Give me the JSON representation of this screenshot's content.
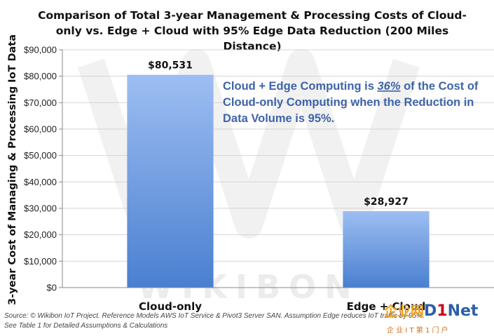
{
  "chart_data": {
    "type": "bar",
    "title_lines": [
      "Comparison of Total 3-year Management & Processing Costs of Cloud-",
      "only vs. Edge + Cloud with 95% Edge Data Reduction (200 Miles",
      "Distance)"
    ],
    "xlabel": "",
    "ylabel": "3-year Cost of Managing & Processing IoT Data",
    "ylim": [
      0,
      90000
    ],
    "yticks": [
      0,
      10000,
      20000,
      30000,
      40000,
      50000,
      60000,
      70000,
      80000,
      90000
    ],
    "ytick_labels": [
      "$0",
      "$10,000",
      "$20,000",
      "$30,000",
      "$40,000",
      "$50,000",
      "$60,000",
      "$70,000",
      "$80,000",
      "$90,000"
    ],
    "grid": true,
    "categories": [
      "Cloud-only",
      "Edge + Cloud"
    ],
    "values": [
      80531,
      28927
    ],
    "data_labels": [
      "$80,531",
      "$28,927"
    ],
    "annotation": {
      "line1_pre": "Cloud + Edge Computing is ",
      "line1_em": "36%",
      "line1_post": " of the Cost of",
      "line2": "Cloud-only Computing when the Reduction in",
      "line3": "Data Volume is 95%."
    },
    "colors": {
      "bar_top": "#9dbef2",
      "bar_bottom": "#4a7fd0",
      "annotation": "#3e64a8",
      "grid": "#d4d4d4"
    }
  },
  "footer": {
    "source": "Source: © Wikibon IoT Project. Reference Models AWS IoT Service & Pivot3 Server SAN. Assumption Edge reduces IoT traffic by 95%.",
    "note": "See Table 1 for Detailed Assumptions & Calculations"
  },
  "watermark": {
    "text": "WIKIBON"
  },
  "logo": {
    "brand_cn": "企业网",
    "brand_d": "D",
    "brand_1": "1",
    "brand_net": "Net",
    "tagline": "企 业 I T 第 1 门 户"
  }
}
